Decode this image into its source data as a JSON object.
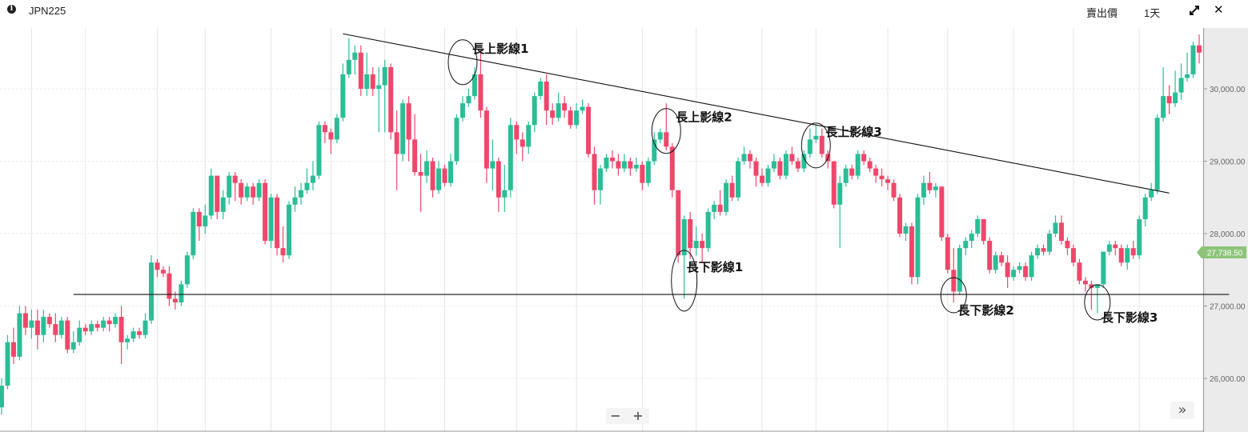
{
  "header": {
    "info_icon": "info-icon",
    "symbol": "JPN225",
    "price_type": "賣出價",
    "interval": "1天",
    "expand_icon": "expand-icon",
    "close_icon": "close-icon"
  },
  "controls": {
    "zoom_out": "−",
    "zoom_in": "+",
    "scroll_right": "»"
  },
  "colors": {
    "up": "#2bbd96",
    "down": "#ef476b",
    "badge": "#8ec47a",
    "grid": "#e6e6e6",
    "line": "#111111"
  },
  "chart_data": {
    "type": "candlestick",
    "symbol": "JPN225",
    "interval": "1天",
    "ylim": [
      25260,
      30840
    ],
    "yticks": [
      26000,
      27000,
      28000,
      29000,
      30000
    ],
    "ytick_labels": [
      "26,000.00",
      "27,000.00",
      "28,000.00",
      "29,000.00",
      "30,000.00"
    ],
    "grid": true,
    "current_price": 27738.5,
    "current_price_label": "27,738.50",
    "candles_ohlc": [
      [
        25600,
        26000,
        25500,
        25900
      ],
      [
        25900,
        26600,
        25850,
        26500
      ],
      [
        26500,
        26700,
        26200,
        26300
      ],
      [
        26300,
        27000,
        26250,
        26900
      ],
      [
        26900,
        27000,
        26600,
        26700
      ],
      [
        26700,
        26950,
        26550,
        26800
      ],
      [
        26800,
        26950,
        26400,
        26600
      ],
      [
        26600,
        26950,
        26500,
        26850
      ],
      [
        26850,
        26900,
        26700,
        26750
      ],
      [
        26750,
        26900,
        26500,
        26600
      ],
      [
        26600,
        26850,
        26550,
        26800
      ],
      [
        26800,
        26850,
        26350,
        26400
      ],
      [
        26400,
        26650,
        26350,
        26500
      ],
      [
        26500,
        26800,
        26450,
        26700
      ],
      [
        26700,
        26750,
        26600,
        26650
      ],
      [
        26650,
        26800,
        26600,
        26750
      ],
      [
        26750,
        26800,
        26650,
        26700
      ],
      [
        26700,
        26850,
        26650,
        26800
      ],
      [
        26800,
        26850,
        26650,
        26750
      ],
      [
        26750,
        26900,
        26700,
        26850
      ],
      [
        26850,
        27000,
        26200,
        26500
      ],
      [
        26500,
        26600,
        26400,
        26550
      ],
      [
        26550,
        26700,
        26500,
        26650
      ],
      [
        26650,
        26700,
        26550,
        26600
      ],
      [
        26600,
        26900,
        26550,
        26800
      ],
      [
        26800,
        27700,
        26750,
        27600
      ],
      [
        27600,
        27650,
        27400,
        27500
      ],
      [
        27500,
        27550,
        27400,
        27450
      ],
      [
        27450,
        27550,
        27000,
        27100
      ],
      [
        27100,
        27200,
        26950,
        27050
      ],
      [
        27050,
        27350,
        27000,
        27300
      ],
      [
        27300,
        27750,
        27250,
        27700
      ],
      [
        27700,
        28350,
        27650,
        28300
      ],
      [
        28300,
        28350,
        27900,
        28100
      ],
      [
        28100,
        28400,
        28000,
        28250
      ],
      [
        28250,
        28900,
        28200,
        28800
      ],
      [
        28800,
        28800,
        28200,
        28300
      ],
      [
        28300,
        28600,
        28200,
        28500
      ],
      [
        28500,
        28850,
        28400,
        28800
      ],
      [
        28800,
        28850,
        28450,
        28700
      ],
      [
        28700,
        28750,
        28400,
        28500
      ],
      [
        28500,
        28700,
        28450,
        28650
      ],
      [
        28650,
        28700,
        28400,
        28500
      ],
      [
        28500,
        28750,
        28450,
        28700
      ],
      [
        28700,
        28750,
        27850,
        27900
      ],
      [
        27900,
        28550,
        27800,
        28500
      ],
      [
        28500,
        28550,
        27700,
        27800
      ],
      [
        27800,
        28100,
        27600,
        27700
      ],
      [
        27700,
        28450,
        27650,
        28400
      ],
      [
        28400,
        28650,
        28300,
        28500
      ],
      [
        28500,
        28700,
        28400,
        28600
      ],
      [
        28600,
        28900,
        28550,
        28700
      ],
      [
        28700,
        29000,
        28600,
        28800
      ],
      [
        28800,
        29550,
        28750,
        29500
      ],
      [
        29500,
        29550,
        29250,
        29400
      ],
      [
        29400,
        29450,
        29100,
        29300
      ],
      [
        29300,
        29650,
        29250,
        29600
      ],
      [
        29600,
        30350,
        29550,
        30200
      ],
      [
        30200,
        30700,
        30150,
        30400
      ],
      [
        30400,
        30600,
        30200,
        30500
      ],
      [
        30500,
        30600,
        29900,
        30000
      ],
      [
        30000,
        30500,
        29900,
        30200
      ],
      [
        30200,
        30300,
        29900,
        30000
      ],
      [
        30000,
        30300,
        29400,
        30050
      ],
      [
        30050,
        30400,
        29400,
        30300
      ],
      [
        30300,
        30350,
        29300,
        29400
      ],
      [
        29400,
        29700,
        28600,
        29100
      ],
      [
        29100,
        29850,
        29000,
        29800
      ],
      [
        29800,
        29900,
        29000,
        29300
      ],
      [
        29300,
        29650,
        28800,
        28850
      ],
      [
        28850,
        29100,
        28300,
        28800
      ],
      [
        28800,
        29150,
        28700,
        29000
      ],
      [
        29000,
        29050,
        28500,
        28600
      ],
      [
        28600,
        29000,
        28550,
        28900
      ],
      [
        28900,
        28950,
        28650,
        28700
      ],
      [
        28700,
        29100,
        28650,
        29000
      ],
      [
        29000,
        29650,
        28950,
        29600
      ],
      [
        29600,
        29900,
        29550,
        29800
      ],
      [
        29800,
        30000,
        29750,
        29900
      ],
      [
        29900,
        30300,
        29850,
        30200
      ],
      [
        30200,
        30550,
        29600,
        29700
      ],
      [
        29700,
        29750,
        28700,
        28900
      ],
      [
        28900,
        29300,
        28600,
        29000
      ],
      [
        29000,
        29050,
        28300,
        28500
      ],
      [
        28500,
        28950,
        28300,
        28600
      ],
      [
        28600,
        29600,
        28500,
        29500
      ],
      [
        29500,
        29550,
        29100,
        29300
      ],
      [
        29300,
        29400,
        29000,
        29200
      ],
      [
        29200,
        29550,
        29100,
        29500
      ],
      [
        29500,
        29950,
        29400,
        29900
      ],
      [
        29900,
        30150,
        29850,
        30100
      ],
      [
        30100,
        30200,
        29500,
        29700
      ],
      [
        29700,
        29800,
        29500,
        29600
      ],
      [
        29600,
        29950,
        29550,
        29800
      ],
      [
        29800,
        29900,
        29600,
        29700
      ],
      [
        29700,
        29750,
        29450,
        29500
      ],
      [
        29500,
        29800,
        29450,
        29700
      ],
      [
        29700,
        29850,
        29650,
        29750
      ],
      [
        29750,
        29800,
        29050,
        29100
      ],
      [
        29100,
        29200,
        28400,
        28600
      ],
      [
        28600,
        28950,
        28400,
        28900
      ],
      [
        28900,
        29100,
        28850,
        29050
      ],
      [
        29050,
        29150,
        28900,
        29000
      ],
      [
        29000,
        29100,
        28800,
        28900
      ],
      [
        28900,
        29100,
        28850,
        29000
      ],
      [
        29000,
        29050,
        28800,
        28900
      ],
      [
        28900,
        29050,
        28850,
        28950
      ],
      [
        28950,
        29000,
        28600,
        28700
      ],
      [
        28700,
        29050,
        28650,
        29000
      ],
      [
        29000,
        29400,
        28950,
        29300
      ],
      [
        29300,
        29450,
        29250,
        29400
      ],
      [
        29400,
        29800,
        29150,
        29200
      ],
      [
        29200,
        29250,
        28500,
        28600
      ],
      [
        28600,
        28600,
        27600,
        27700
      ],
      [
        27700,
        28250,
        27100,
        28200
      ],
      [
        28200,
        28300,
        27650,
        27800
      ],
      [
        27800,
        28100,
        27700,
        27900
      ],
      [
        27900,
        28000,
        27600,
        27800
      ],
      [
        27800,
        28350,
        27750,
        28300
      ],
      [
        28300,
        28450,
        28200,
        28400
      ],
      [
        28400,
        28600,
        28250,
        28300
      ],
      [
        28300,
        28750,
        28250,
        28700
      ],
      [
        28700,
        28800,
        28450,
        28500
      ],
      [
        28500,
        29050,
        28450,
        29000
      ],
      [
        29000,
        29200,
        28950,
        29100
      ],
      [
        29100,
        29150,
        28900,
        29000
      ],
      [
        29000,
        29050,
        28650,
        28800
      ],
      [
        28800,
        28900,
        28650,
        28700
      ],
      [
        28700,
        28950,
        28650,
        28900
      ],
      [
        28900,
        29100,
        28850,
        29000
      ],
      [
        29000,
        29050,
        28750,
        28800
      ],
      [
        28800,
        29150,
        28750,
        29100
      ],
      [
        29100,
        29200,
        28950,
        29000
      ],
      [
        29000,
        29050,
        28850,
        28900
      ],
      [
        28900,
        29150,
        28850,
        29100
      ],
      [
        29100,
        29450,
        29050,
        29300
      ],
      [
        29300,
        29500,
        29250,
        29350
      ],
      [
        29350,
        29450,
        29050,
        29100
      ],
      [
        29100,
        29150,
        28900,
        29000
      ],
      [
        29000,
        29000,
        28350,
        28400
      ],
      [
        28400,
        28800,
        27800,
        28700
      ],
      [
        28700,
        28950,
        28650,
        28900
      ],
      [
        28900,
        28950,
        28750,
        28800
      ],
      [
        28800,
        29150,
        28750,
        29100
      ],
      [
        29100,
        29150,
        28950,
        29000
      ],
      [
        29000,
        29050,
        28850,
        28900
      ],
      [
        28900,
        28950,
        28700,
        28800
      ],
      [
        28800,
        28900,
        28650,
        28750
      ],
      [
        28750,
        28800,
        28600,
        28700
      ],
      [
        28700,
        28750,
        28450,
        28500
      ],
      [
        28500,
        28550,
        27950,
        28000
      ],
      [
        28000,
        28150,
        27900,
        28100
      ],
      [
        28100,
        28150,
        27300,
        27400
      ],
      [
        27400,
        28550,
        27300,
        28500
      ],
      [
        28500,
        28800,
        28400,
        28700
      ],
      [
        28700,
        28850,
        28550,
        28600
      ],
      [
        28600,
        28700,
        28500,
        28650
      ],
      [
        28650,
        28650,
        27900,
        27950
      ],
      [
        27950,
        28000,
        27450,
        27500
      ],
      [
        27500,
        27800,
        27050,
        27200
      ],
      [
        27200,
        27850,
        27150,
        27800
      ],
      [
        27800,
        27950,
        27700,
        27900
      ],
      [
        27900,
        28050,
        27800,
        28000
      ],
      [
        28000,
        28250,
        27950,
        28200
      ],
      [
        28200,
        28200,
        27850,
        27900
      ],
      [
        27900,
        27950,
        27450,
        27500
      ],
      [
        27500,
        27750,
        27450,
        27700
      ],
      [
        27700,
        27750,
        27550,
        27600
      ],
      [
        27600,
        27700,
        27250,
        27400
      ],
      [
        27400,
        27550,
        27350,
        27500
      ],
      [
        27500,
        27600,
        27450,
        27550
      ],
      [
        27550,
        27600,
        27350,
        27400
      ],
      [
        27400,
        27750,
        27350,
        27700
      ],
      [
        27700,
        27850,
        27650,
        27800
      ],
      [
        27800,
        27850,
        27700,
        27750
      ],
      [
        27750,
        28050,
        27700,
        28000
      ],
      [
        28000,
        28250,
        27950,
        28150
      ],
      [
        28150,
        28250,
        27850,
        27900
      ],
      [
        27900,
        27950,
        27700,
        27800
      ],
      [
        27800,
        27850,
        27550,
        27600
      ],
      [
        27600,
        27650,
        27300,
        27350
      ],
      [
        27350,
        27400,
        27200,
        27300
      ],
      [
        27300,
        27350,
        26950,
        27250
      ],
      [
        27250,
        27300,
        26900,
        27300
      ],
      [
        27300,
        27750,
        27250,
        27750
      ],
      [
        27750,
        27900,
        27700,
        27850
      ],
      [
        27850,
        27900,
        27700,
        27800
      ],
      [
        27800,
        27850,
        27550,
        27600
      ],
      [
        27600,
        27850,
        27500,
        27800
      ],
      [
        27800,
        27900,
        27650,
        27700
      ],
      [
        27700,
        28250,
        27650,
        28200
      ],
      [
        28200,
        28550,
        28100,
        28500
      ],
      [
        28500,
        28700,
        28450,
        28600
      ],
      [
        28600,
        29650,
        28550,
        29600
      ],
      [
        29600,
        30300,
        29550,
        29900
      ],
      [
        29900,
        30050,
        29650,
        29800
      ],
      [
        29800,
        30250,
        29750,
        29950
      ],
      [
        29950,
        30350,
        29850,
        30150
      ],
      [
        30150,
        30500,
        30100,
        30200
      ],
      [
        30200,
        30650,
        30150,
        30600
      ],
      [
        30600,
        30750,
        30350,
        30500
      ]
    ],
    "trendlines": [
      {
        "from": [
          57,
          30760
        ],
        "to": [
          195,
          28560
        ]
      },
      {
        "from": [
          12,
          27160
        ],
        "to": [
          205,
          27160
        ]
      }
    ],
    "annotations": [
      {
        "text": "長上影線1",
        "candle": 77,
        "price": 30500,
        "type": "upper"
      },
      {
        "text": "長上影線2",
        "candle": 111,
        "price": 29550,
        "type": "upper"
      },
      {
        "text": "長上影線3",
        "candle": 136,
        "price": 29350,
        "type": "upper"
      },
      {
        "text": "長下影線1",
        "candle": 114,
        "price": 27350,
        "type": "lower"
      },
      {
        "text": "長下影線2",
        "candle": 159,
        "price": 27150,
        "type": "lower"
      },
      {
        "text": "長下影線3",
        "candle": 183,
        "price": 27050,
        "type": "lower"
      }
    ],
    "x_grid_candles": [
      5,
      14,
      26,
      34,
      45,
      55,
      64,
      74,
      86,
      96,
      107,
      116,
      127,
      136,
      148,
      158,
      169,
      179,
      190,
      201
    ]
  }
}
